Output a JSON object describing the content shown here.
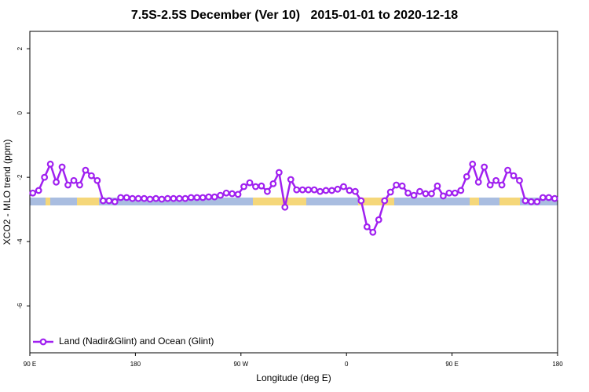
{
  "chart_data": {
    "type": "line",
    "title": "7.5S-2.5S December (Ver 10)   2015-01-01 to 2020-12-18",
    "xlabel": "Longitude (deg E)",
    "ylabel": "XCO2 - MLO trend (ppm)",
    "x": [
      92.5,
      97.5,
      102.5,
      107.5,
      112.5,
      117.5,
      122.5,
      127.5,
      132.5,
      137.5,
      142.5,
      147.5,
      152.5,
      157.5,
      162.5,
      167.5,
      172.5,
      177.5,
      182.5,
      187.5,
      192.5,
      197.5,
      202.5,
      207.5,
      212.5,
      217.5,
      222.5,
      227.5,
      232.5,
      237.5,
      242.5,
      247.5,
      252.5,
      257.5,
      262.5,
      267.5,
      272.5,
      277.5,
      282.5,
      287.5,
      292.5,
      297.5,
      302.5,
      307.5,
      312.5,
      317.5,
      322.5,
      327.5,
      332.5,
      337.5,
      342.5,
      347.5,
      352.5,
      357.5,
      362.5,
      367.5,
      372.5,
      377.5,
      382.5,
      387.5,
      392.5,
      397.5,
      402.5,
      407.5,
      412.5,
      417.5,
      422.5,
      427.5,
      432.5,
      437.5,
      442.5,
      447.5,
      452.5,
      457.5,
      462.5,
      467.5,
      472.5,
      477.5,
      482.5,
      487.5,
      492.5,
      497.5,
      502.5,
      507.5,
      512.5,
      517.5,
      522.5,
      527.5,
      532.5,
      537.5
    ],
    "series": [
      {
        "name": "Land (Nadir&Glint) and Ocean (Glint)",
        "color": "#a020f0",
        "values": [
          -2.49,
          -2.41,
          -2.0,
          -1.59,
          -2.15,
          -1.68,
          -2.24,
          -2.1,
          -2.24,
          -1.78,
          -1.95,
          -2.1,
          -2.73,
          -2.73,
          -2.76,
          -2.63,
          -2.63,
          -2.66,
          -2.66,
          -2.66,
          -2.68,
          -2.66,
          -2.68,
          -2.66,
          -2.66,
          -2.66,
          -2.66,
          -2.63,
          -2.63,
          -2.63,
          -2.61,
          -2.61,
          -2.56,
          -2.49,
          -2.51,
          -2.53,
          -2.29,
          -2.17,
          -2.29,
          -2.27,
          -2.44,
          -2.2,
          -1.85,
          -2.93,
          -2.07,
          -2.39,
          -2.39,
          -2.39,
          -2.39,
          -2.44,
          -2.41,
          -2.41,
          -2.37,
          -2.29,
          -2.41,
          -2.44,
          -2.73,
          -3.54,
          -3.71,
          -3.32,
          -2.73,
          -2.46,
          -2.24,
          -2.27,
          -2.49,
          -2.56,
          -2.44,
          -2.51,
          -2.51,
          -2.27,
          -2.58,
          -2.49,
          -2.49,
          -2.41,
          -1.98,
          -1.59,
          -2.15,
          -1.68,
          -2.24,
          -2.1,
          -2.24,
          -1.78,
          -1.95,
          -2.1,
          -2.73,
          -2.76,
          -2.76,
          -2.63,
          -2.63,
          -2.66
        ]
      }
    ],
    "xlim": [
      90,
      540
    ],
    "xticks": [
      {
        "value": 90,
        "label": "90 E"
      },
      180,
      {
        "value": 270,
        "label": "90 W"
      },
      {
        "value": 360,
        "label": "0"
      },
      {
        "value": 450,
        "label": "90 E"
      },
      {
        "value": 540,
        "label": "180"
      }
    ],
    "ylim": [
      -7.46,
      2.54
    ],
    "yticks": [
      -6,
      -4,
      -2,
      0,
      2
    ],
    "legend": "bottom-left"
  }
}
